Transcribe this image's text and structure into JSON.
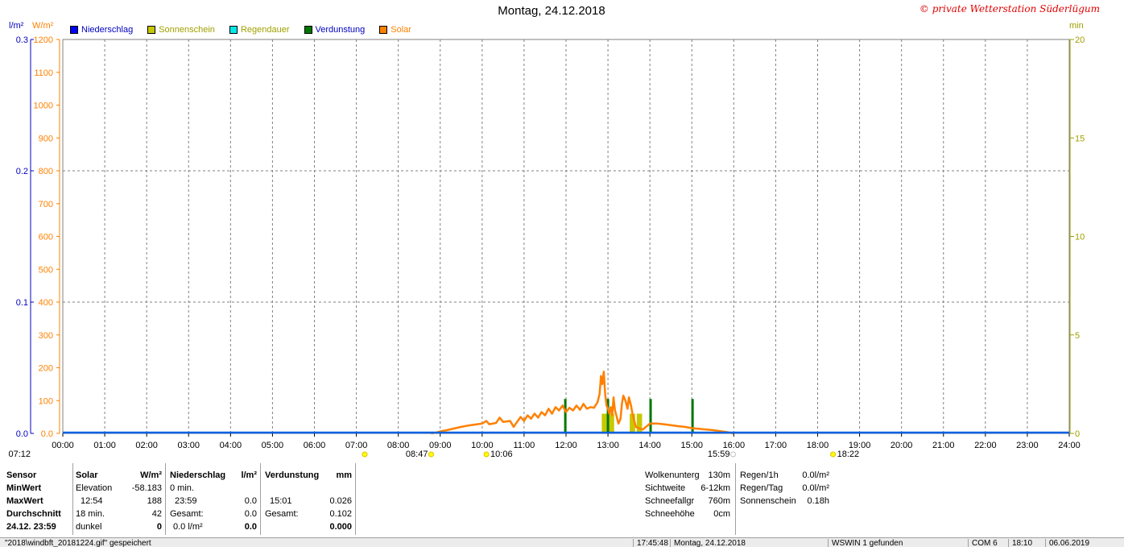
{
  "title": "Montag, 24.12.2018",
  "copyright": "© private Wetterstation Süderlügum",
  "units": {
    "left1": "l/m²",
    "left2": "W/m²",
    "right": "min"
  },
  "legend": [
    {
      "label": "Niederschlag",
      "color": "#0000ff",
      "text_color": "#0000c0"
    },
    {
      "label": "Sonnenschein",
      "color": "#c8c800",
      "text_color": "#a0a000"
    },
    {
      "label": "Regendauer",
      "color": "#00e8e8",
      "text_color": "#a0a000"
    },
    {
      "label": "Verdunstung",
      "color": "#007800",
      "text_color": "#0000c0"
    },
    {
      "label": "Solar",
      "color": "#ff8000",
      "text_color": "#ff8000"
    }
  ],
  "chart_data": {
    "type": "line",
    "x_range": [
      "00:00",
      "24:00"
    ],
    "x_ticks": [
      "00:00",
      "01:00",
      "02:00",
      "03:00",
      "04:00",
      "05:00",
      "06:00",
      "07:00",
      "08:00",
      "09:00",
      "10:00",
      "11:00",
      "12:00",
      "13:00",
      "14:00",
      "15:00",
      "16:00",
      "17:00",
      "18:00",
      "19:00",
      "20:00",
      "21:00",
      "22:00",
      "23:00",
      "24:00"
    ],
    "y_axes": {
      "precip": {
        "unit": "l/m²",
        "range": [
          0,
          0.3
        ],
        "ticks": [
          "0.0",
          "0.1",
          "0.2",
          "0.3"
        ],
        "color": "#0000c0"
      },
      "solar": {
        "unit": "W/m²",
        "range": [
          0,
          1200
        ],
        "ticks": [
          "0.0",
          "100",
          "200",
          "300",
          "400",
          "500",
          "600",
          "700",
          "800",
          "900",
          "1000",
          "1100",
          "1200"
        ],
        "color": "#ff8000"
      },
      "minutes": {
        "unit": "min",
        "range": [
          0,
          20
        ],
        "ticks": [
          "0",
          "5",
          "10",
          "15",
          "20"
        ],
        "color": "#a0a000"
      }
    },
    "grid": true,
    "legend_position": "top-left",
    "series": [
      {
        "name": "Solar",
        "color": "#ff8000",
        "axis": "solar",
        "points": [
          [
            "08:47",
            0
          ],
          [
            "08:55",
            3
          ],
          [
            "09:00",
            6
          ],
          [
            "09:10",
            10
          ],
          [
            "09:20",
            15
          ],
          [
            "09:30",
            20
          ],
          [
            "09:40",
            24
          ],
          [
            "09:50",
            27
          ],
          [
            "10:00",
            30
          ],
          [
            "10:06",
            38
          ],
          [
            "10:10",
            28
          ],
          [
            "10:20",
            32
          ],
          [
            "10:25",
            48
          ],
          [
            "10:30",
            35
          ],
          [
            "10:40",
            38
          ],
          [
            "10:45",
            20
          ],
          [
            "10:50",
            35
          ],
          [
            "10:55",
            50
          ],
          [
            "11:00",
            38
          ],
          [
            "11:05",
            55
          ],
          [
            "11:10",
            45
          ],
          [
            "11:15",
            60
          ],
          [
            "11:20",
            48
          ],
          [
            "11:25",
            65
          ],
          [
            "11:30",
            55
          ],
          [
            "11:35",
            75
          ],
          [
            "11:40",
            60
          ],
          [
            "11:45",
            80
          ],
          [
            "11:50",
            70
          ],
          [
            "11:55",
            85
          ],
          [
            "12:00",
            65
          ],
          [
            "12:05",
            78
          ],
          [
            "12:10",
            70
          ],
          [
            "12:15",
            85
          ],
          [
            "12:20",
            72
          ],
          [
            "12:25",
            90
          ],
          [
            "12:30",
            75
          ],
          [
            "12:35",
            80
          ],
          [
            "12:40",
            78
          ],
          [
            "12:45",
            95
          ],
          [
            "12:48",
            120
          ],
          [
            "12:50",
            175
          ],
          [
            "12:52",
            150
          ],
          [
            "12:54",
            188
          ],
          [
            "12:56",
            120
          ],
          [
            "12:58",
            85
          ],
          [
            "13:00",
            75
          ],
          [
            "13:02",
            60
          ],
          [
            "13:04",
            80
          ],
          [
            "13:06",
            55
          ],
          [
            "13:08",
            110
          ],
          [
            "13:10",
            70
          ],
          [
            "13:12",
            55
          ],
          [
            "13:15",
            30
          ],
          [
            "13:18",
            45
          ],
          [
            "13:20",
            90
          ],
          [
            "13:22",
            115
          ],
          [
            "13:25",
            100
          ],
          [
            "13:28",
            75
          ],
          [
            "13:30",
            110
          ],
          [
            "13:33",
            85
          ],
          [
            "13:35",
            60
          ],
          [
            "13:38",
            35
          ],
          [
            "13:40",
            20
          ],
          [
            "13:45",
            15
          ],
          [
            "13:50",
            12
          ],
          [
            "14:00",
            30
          ],
          [
            "14:10",
            30
          ],
          [
            "14:20",
            28
          ],
          [
            "14:30",
            25
          ],
          [
            "14:40",
            22
          ],
          [
            "14:50",
            20
          ],
          [
            "15:00",
            16
          ],
          [
            "15:10",
            14
          ],
          [
            "15:20",
            12
          ],
          [
            "15:30",
            10
          ],
          [
            "15:40",
            7
          ],
          [
            "15:50",
            4
          ],
          [
            "15:59",
            0
          ]
        ]
      },
      {
        "name": "Sonnenschein",
        "color": "#c8c800",
        "axis": "minutes",
        "bars": [
          {
            "from": "12:50",
            "to": "13:00",
            "value": 1
          },
          {
            "from": "13:00",
            "to": "13:10",
            "value": 1
          },
          {
            "from": "13:30",
            "to": "13:40",
            "value": 1
          },
          {
            "from": "13:40",
            "to": "13:50",
            "value": 1
          }
        ]
      },
      {
        "name": "Verdunstung",
        "color": "#007800",
        "axis": "minutes",
        "bars": [
          {
            "at": "11:59",
            "value": 1.75
          },
          {
            "at": "13:00",
            "value": 1.75
          },
          {
            "at": "14:01",
            "value": 1.75
          },
          {
            "at": "15:01",
            "value": 1.75
          }
        ]
      },
      {
        "name": "Niederschlag",
        "color": "#0060e0",
        "axis": "precip",
        "constant": 0.0
      }
    ],
    "markers": [
      {
        "label": "07:12",
        "time": "07:12",
        "row": "lower",
        "color": "#ffff00"
      },
      {
        "label": "08:47",
        "time": "08:47",
        "row": "lower",
        "color": "#ffff00"
      },
      {
        "label": "10:06",
        "time": "10:06",
        "row": "lower",
        "color": "#ffff00"
      },
      {
        "label": "15:59",
        "time": "15:59",
        "row": "lower",
        "color": "#ffffff"
      },
      {
        "label": "18:22",
        "time": "18:22",
        "row": "lower",
        "color": "#ffff00"
      }
    ]
  },
  "panel": {
    "sensor": {
      "header": "Sensor",
      "rows": [
        "MinWert",
        "MaxWert",
        "Durchschnitt",
        "24.12. 23:59"
      ]
    },
    "solar": {
      "header": "Solar",
      "unit": "W/m²",
      "rows": [
        {
          "label": "Elevation",
          "value": "-58.183"
        },
        {
          "label": "12:54",
          "value": "188"
        },
        {
          "label": "18 min.",
          "value": "42"
        },
        {
          "label": "dunkel",
          "value": "0"
        }
      ]
    },
    "niederschlag": {
      "header": "Niederschlag",
      "unit": "l/m²",
      "rows": [
        {
          "label": "0 min.",
          "value": ""
        },
        {
          "label": "23:59",
          "value": "0.0"
        },
        {
          "label": "Gesamt:",
          "value": "0.0"
        },
        {
          "label": "0.0 l/m²",
          "value": "0.0"
        }
      ]
    },
    "verdunstung": {
      "header": "Verdunstung",
      "unit": "mm",
      "rows": [
        {
          "label": "",
          "value": ""
        },
        {
          "label": "15:01",
          "value": "0.026"
        },
        {
          "label": "Gesamt:",
          "value": "0.102"
        },
        {
          "label": "",
          "value": "0.000"
        }
      ]
    },
    "weather": [
      {
        "label": "Wolkenunterg",
        "value": "130m"
      },
      {
        "label": "Sichtweite",
        "value": "6-12km"
      },
      {
        "label": "Schneefallgr",
        "value": "760m"
      },
      {
        "label": "Schneehöhe",
        "value": "0cm"
      }
    ],
    "rain": [
      {
        "label": "Regen/1h",
        "value": "0.0l/m²"
      },
      {
        "label": "Regen/Tag",
        "value": "0.0l/m²"
      },
      {
        "label": "Sonnenschein",
        "value": "0.18h"
      }
    ]
  },
  "statusbar": {
    "file_msg": "\"2018\\windbft_20181224.gif\" gespeichert",
    "time": "17:45:48",
    "date": "Montag, 24.12.2018",
    "wswin": "WSWIN 1 gefunden",
    "com": "COM 6",
    "clock": "18:10",
    "today": "06.06.2019"
  }
}
